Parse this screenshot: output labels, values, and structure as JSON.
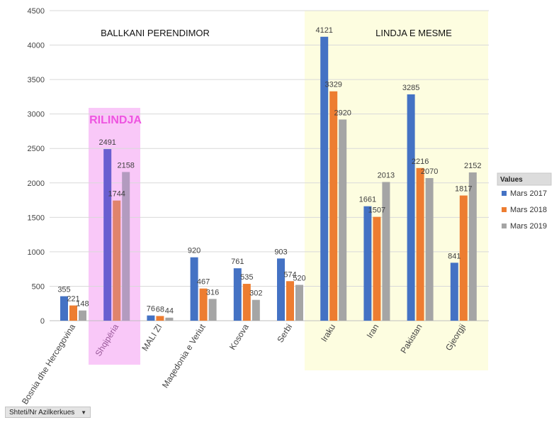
{
  "chart_data": {
    "type": "bar",
    "categories": [
      "Bosnia dhe Hercegovina",
      "Shqipëria",
      "MALI ZI",
      "Maqedonia e Veriut",
      "Kosova",
      "Serbi",
      "Iraku",
      "Iran",
      "Pakistan",
      "Gjeorgji"
    ],
    "series": [
      {
        "name": "Mars 2017",
        "values": [
          355,
          2491,
          76,
          920,
          761,
          903,
          4121,
          1661,
          3285,
          841
        ]
      },
      {
        "name": "Mars 2018",
        "values": [
          221,
          1744,
          68,
          467,
          535,
          574,
          3329,
          1507,
          2216,
          1817
        ]
      },
      {
        "name": "Mars 2019",
        "values": [
          148,
          2158,
          44,
          316,
          302,
          520,
          2920,
          2013,
          2070,
          2152
        ]
      }
    ],
    "ylim": [
      0,
      4500
    ],
    "yticks": [
      0,
      500,
      1000,
      1500,
      2000,
      2500,
      3000,
      3500,
      4000,
      4500
    ],
    "grid": true,
    "legend_title": "Values",
    "legend_position": "right",
    "annotations": [
      {
        "text": "BALLKANI PERENDIMOR",
        "region": "Ballkani"
      },
      {
        "text": "LINDJA E MESME",
        "region": "Lindja"
      },
      {
        "text": "RILINDJA",
        "region": "Shqiperia"
      }
    ],
    "colors": {
      "series": [
        "#4472c4",
        "#ed7d31",
        "#a5a5a5"
      ],
      "highlight_series": [
        "#6a5fd0",
        "#e0846c",
        "#b39bbf"
      ],
      "ballkani_zone": "#ffffff",
      "rilindja_zone": "#f9c8f8",
      "lindja_zone": "#fdfde0",
      "rilindja_text": "#ee55e0"
    }
  },
  "filter_button": {
    "label": "Shteti/Nr  Azilkerkues",
    "icon": "chevron-down-icon"
  }
}
